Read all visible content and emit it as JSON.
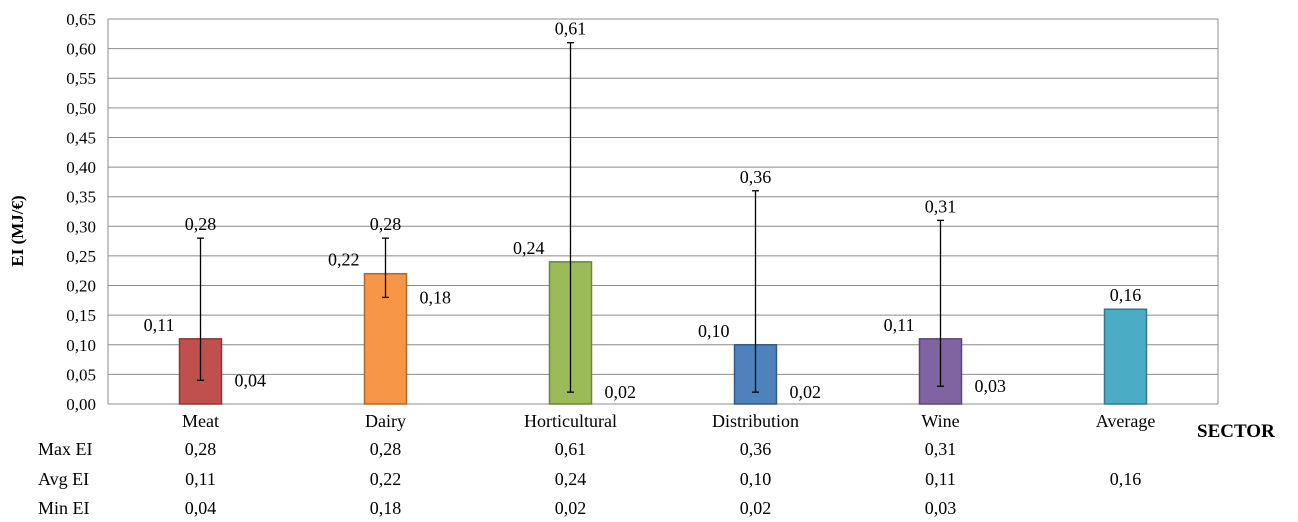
{
  "chart_data": {
    "type": "bar",
    "ylabel": "EI (MJ/€)",
    "xlabel": "SECTOR",
    "ylim": [
      0,
      0.65
    ],
    "ytick_step": 0.05,
    "ytick_labels": [
      "0,00",
      "0,05",
      "0,10",
      "0,15",
      "0,20",
      "0,25",
      "0,30",
      "0,35",
      "0,40",
      "0,45",
      "0,50",
      "0,55",
      "0,60",
      "0,65"
    ],
    "grid": true,
    "categories": [
      "Meat",
      "Dairy",
      "Horticultural",
      "Distribution",
      "Wine",
      "Average"
    ],
    "values": [
      0.11,
      0.22,
      0.24,
      0.1,
      0.11,
      0.16
    ],
    "value_labels": [
      "0,11",
      "0,22",
      "0,24",
      "0,10",
      "0,11",
      "0,16"
    ],
    "error_max": [
      0.28,
      0.28,
      0.61,
      0.36,
      0.31,
      null
    ],
    "error_max_labels": [
      "0,28",
      "0,28",
      "0,61",
      "0,36",
      "0,31",
      ""
    ],
    "error_min": [
      0.04,
      0.18,
      0.02,
      0.02,
      0.03,
      null
    ],
    "error_min_labels": [
      "0,04",
      "0,18",
      "0,02",
      "0,02",
      "0,03",
      ""
    ],
    "colors": [
      "#C0504D",
      "#F79646",
      "#9BBB59",
      "#4F81BD",
      "#8064A2",
      "#4BACC6"
    ],
    "table": {
      "rows": [
        {
          "label": "Max EI",
          "values": [
            "0,28",
            "0,28",
            "0,61",
            "0,36",
            "0,31",
            ""
          ]
        },
        {
          "label": "Avg EI",
          "values": [
            "0,11",
            "0,22",
            "0,24",
            "0,10",
            "0,11",
            "0,16"
          ]
        },
        {
          "label": "Min EI",
          "values": [
            "0,04",
            "0,18",
            "0,02",
            "0,02",
            "0,03",
            ""
          ]
        }
      ]
    }
  }
}
